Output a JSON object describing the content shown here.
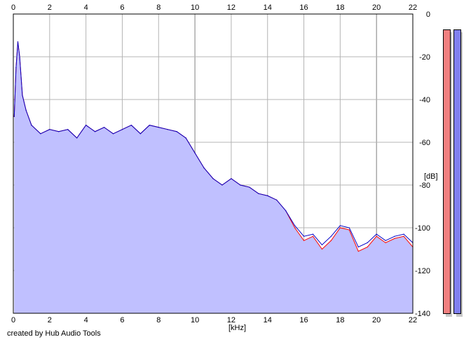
{
  "app": {
    "credit_text": "created by Hub Audio Tools"
  },
  "axes": {
    "x_unit": "[kHz]",
    "y_unit": "[dB]",
    "x_ticks": [
      "0",
      "2",
      "4",
      "6",
      "8",
      "10",
      "12",
      "14",
      "16",
      "18",
      "20",
      "22"
    ],
    "y_ticks": [
      "0",
      "-20",
      "-40",
      "-60",
      "-80",
      "-100",
      "-120",
      "-140"
    ]
  },
  "colors": {
    "background": "#ffffff",
    "grid": "#b4b4b4",
    "fill": "#c0c0ff",
    "channel_left": "#ff0000",
    "channel_right": "#0000c8",
    "meter_left": "#f08080",
    "meter_right": "#8080f0"
  },
  "chart_data": {
    "type": "area",
    "xlabel": "[kHz]",
    "ylabel": "[dB]",
    "xlim": [
      0,
      22
    ],
    "ylim": [
      -140,
      0
    ],
    "grid": true,
    "legend": "none",
    "x": [
      0.05,
      0.15,
      0.25,
      0.35,
      0.5,
      0.7,
      1.0,
      1.5,
      2.0,
      2.5,
      3.0,
      3.5,
      4.0,
      4.5,
      5.0,
      5.5,
      6.0,
      6.5,
      7.0,
      7.5,
      8.0,
      8.5,
      9.0,
      9.5,
      10.0,
      10.5,
      11.0,
      11.5,
      12.0,
      12.5,
      13.0,
      13.5,
      14.0,
      14.5,
      15.0,
      15.5,
      16.0,
      16.5,
      17.0,
      17.5,
      18.0,
      18.5,
      19.0,
      19.5,
      20.0,
      20.5,
      21.0,
      21.5,
      22.0
    ],
    "series": [
      {
        "values": [
          -48,
          -25,
          -13,
          -20,
          -38,
          -45,
          -52,
          -56,
          -54,
          -55,
          -54,
          -58,
          -52,
          -55,
          -53,
          -56,
          -54,
          -52,
          -56,
          -52,
          -53,
          -54,
          -55,
          -58,
          -65,
          -72,
          -77,
          -80,
          -77,
          -80,
          -81,
          -84,
          -85,
          -87,
          -92,
          -100,
          -106,
          -104,
          -110,
          -106,
          -100,
          -101,
          -111,
          -109,
          -104,
          -107,
          -105,
          -104,
          -109
        ]
      },
      {
        "values": [
          -48,
          -25,
          -13,
          -20,
          -38,
          -45,
          -52,
          -56,
          -54,
          -55,
          -54,
          -58,
          -52,
          -55,
          -53,
          -56,
          -54,
          -52,
          -56,
          -52,
          -53,
          -54,
          -55,
          -58,
          -65,
          -72,
          -77,
          -80,
          -77,
          -80,
          -81,
          -84,
          -85,
          -87,
          -92,
          -99,
          -104,
          -103,
          -108,
          -104,
          -99,
          -100,
          -109,
          -107,
          -103,
          -106,
          -104,
          -103,
          -107
        ]
      }
    ]
  }
}
